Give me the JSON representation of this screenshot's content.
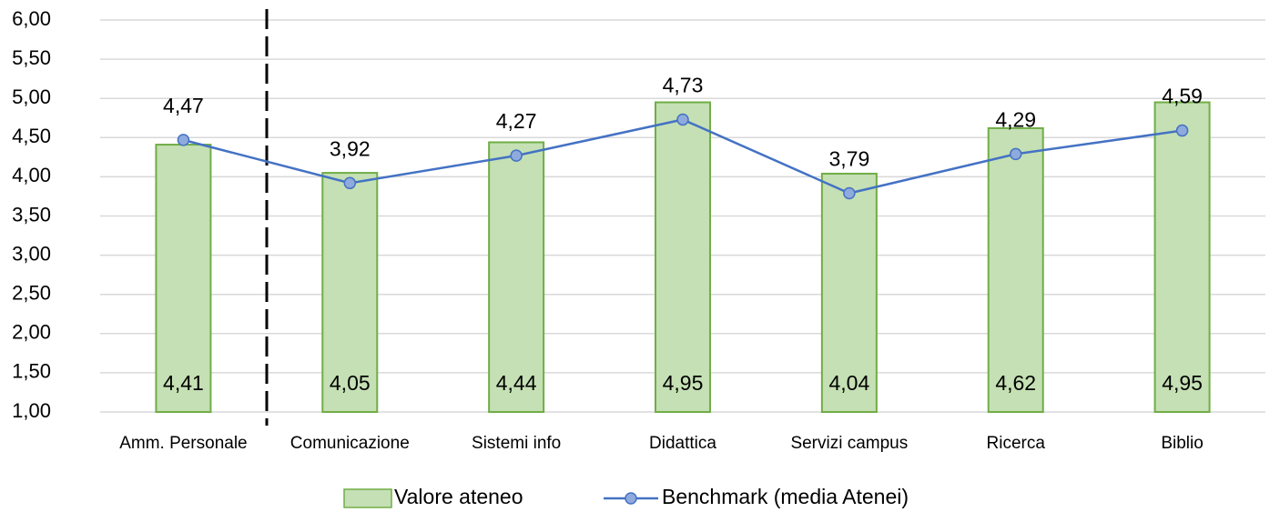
{
  "chart_data": {
    "type": "bar",
    "categories": [
      "Amm. Personale",
      "Comunicazione",
      "Sistemi info",
      "Didattica",
      "Servizi campus",
      "Ricerca",
      "Biblio"
    ],
    "series": [
      {
        "name": "Valore ateneo",
        "type": "bar",
        "color": "#c5e0b4",
        "edge_color": "#70ad47",
        "values": [
          4.41,
          4.05,
          4.44,
          4.95,
          4.04,
          4.62,
          4.95
        ],
        "value_labels": [
          "4,41",
          "4,05",
          "4,44",
          "4,95",
          "4,04",
          "4,62",
          "4,95"
        ]
      },
      {
        "name": "Benchmark (media Atenei)",
        "type": "line",
        "color": "#4472c4",
        "marker_color": "#8faadc",
        "values": [
          4.47,
          3.92,
          4.27,
          4.73,
          3.79,
          4.29,
          4.59
        ],
        "value_labels": [
          "4,47",
          "3,92",
          "4,27",
          "4,73",
          "3,79",
          "4,29",
          "4,59"
        ]
      }
    ],
    "ylim": [
      1,
      6
    ],
    "yticks": [
      {
        "value": 1,
        "label": "1,00"
      },
      {
        "value": 1.5,
        "label": "1,50"
      },
      {
        "value": 2,
        "label": "2,00"
      },
      {
        "value": 2.5,
        "label": "2,50"
      },
      {
        "value": 3,
        "label": "3,00"
      },
      {
        "value": 3.5,
        "label": "3,50"
      },
      {
        "value": 4,
        "label": "4,00"
      },
      {
        "value": 4.5,
        "label": "4,50"
      },
      {
        "value": 5,
        "label": "5,00"
      },
      {
        "value": 5.5,
        "label": "5,50"
      },
      {
        "value": 6,
        "label": "6,00"
      }
    ],
    "grid": true,
    "legend": "bottom"
  }
}
